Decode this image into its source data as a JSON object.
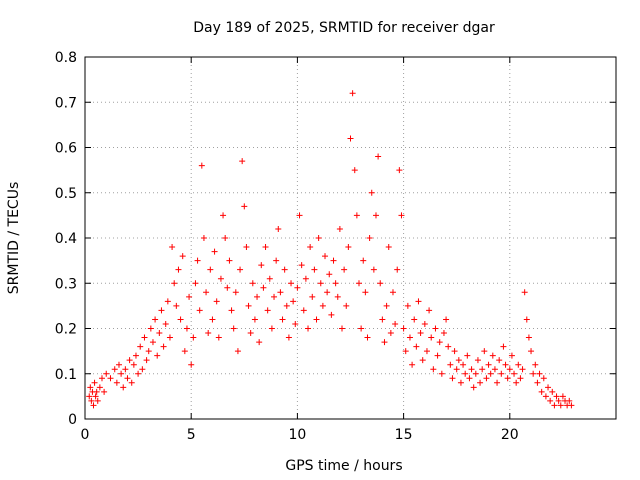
{
  "chart_data": {
    "type": "scatter",
    "title": "Day 189 of 2025, SRMTID for receiver dgar",
    "xlabel": "GPS time / hours",
    "ylabel": "SRMTID / TECUs",
    "xlim": [
      0,
      25
    ],
    "ylim": [
      0,
      0.8
    ],
    "x_ticks": [
      {
        "value": 0,
        "label": "0"
      },
      {
        "value": 5,
        "label": "5"
      },
      {
        "value": 10,
        "label": "10"
      },
      {
        "value": 15,
        "label": "15"
      },
      {
        "value": 20,
        "label": "20"
      }
    ],
    "y_ticks": [
      {
        "value": 0,
        "label": "0"
      },
      {
        "value": 0.1,
        "label": "0.1"
      },
      {
        "value": 0.2,
        "label": "0.2"
      },
      {
        "value": 0.3,
        "label": "0.3"
      },
      {
        "value": 0.4,
        "label": "0.4"
      },
      {
        "value": 0.5,
        "label": "0.5"
      },
      {
        "value": 0.6,
        "label": "0.6"
      },
      {
        "value": 0.7,
        "label": "0.7"
      },
      {
        "value": 0.8,
        "label": "0.8"
      }
    ],
    "grid": true,
    "marker": "+",
    "color": "#ff0000",
    "series": [
      {
        "name": "SRMTID",
        "points": [
          [
            0.2,
            0.05
          ],
          [
            0.25,
            0.07
          ],
          [
            0.3,
            0.04
          ],
          [
            0.35,
            0.06
          ],
          [
            0.4,
            0.03
          ],
          [
            0.45,
            0.08
          ],
          [
            0.5,
            0.05
          ],
          [
            0.55,
            0.06
          ],
          [
            0.6,
            0.04
          ],
          [
            0.7,
            0.07
          ],
          [
            0.8,
            0.09
          ],
          [
            0.9,
            0.06
          ],
          [
            1.0,
            0.1
          ],
          [
            1.2,
            0.09
          ],
          [
            1.4,
            0.11
          ],
          [
            1.5,
            0.08
          ],
          [
            1.6,
            0.12
          ],
          [
            1.7,
            0.1
          ],
          [
            1.8,
            0.07
          ],
          [
            1.9,
            0.11
          ],
          [
            2.0,
            0.09
          ],
          [
            2.1,
            0.13
          ],
          [
            2.2,
            0.08
          ],
          [
            2.3,
            0.12
          ],
          [
            2.4,
            0.14
          ],
          [
            2.5,
            0.1
          ],
          [
            2.6,
            0.16
          ],
          [
            2.7,
            0.11
          ],
          [
            2.8,
            0.18
          ],
          [
            2.9,
            0.13
          ],
          [
            3.0,
            0.15
          ],
          [
            3.1,
            0.2
          ],
          [
            3.2,
            0.17
          ],
          [
            3.3,
            0.22
          ],
          [
            3.4,
            0.14
          ],
          [
            3.5,
            0.19
          ],
          [
            3.6,
            0.24
          ],
          [
            3.7,
            0.16
          ],
          [
            3.8,
            0.21
          ],
          [
            3.9,
            0.26
          ],
          [
            4.0,
            0.18
          ],
          [
            4.1,
            0.38
          ],
          [
            4.2,
            0.3
          ],
          [
            4.3,
            0.25
          ],
          [
            4.4,
            0.33
          ],
          [
            4.5,
            0.22
          ],
          [
            4.6,
            0.36
          ],
          [
            4.7,
            0.15
          ],
          [
            4.8,
            0.2
          ],
          [
            4.9,
            0.27
          ],
          [
            5.0,
            0.12
          ],
          [
            5.1,
            0.18
          ],
          [
            5.2,
            0.3
          ],
          [
            5.3,
            0.35
          ],
          [
            5.4,
            0.24
          ],
          [
            5.5,
            0.56
          ],
          [
            5.6,
            0.4
          ],
          [
            5.7,
            0.28
          ],
          [
            5.8,
            0.19
          ],
          [
            5.9,
            0.33
          ],
          [
            6.0,
            0.22
          ],
          [
            6.1,
            0.37
          ],
          [
            6.2,
            0.26
          ],
          [
            6.3,
            0.18
          ],
          [
            6.4,
            0.31
          ],
          [
            6.5,
            0.45
          ],
          [
            6.6,
            0.4
          ],
          [
            6.7,
            0.29
          ],
          [
            6.8,
            0.35
          ],
          [
            6.9,
            0.24
          ],
          [
            7.0,
            0.2
          ],
          [
            7.1,
            0.28
          ],
          [
            7.2,
            0.15
          ],
          [
            7.3,
            0.33
          ],
          [
            7.4,
            0.57
          ],
          [
            7.5,
            0.47
          ],
          [
            7.6,
            0.38
          ],
          [
            7.7,
            0.25
          ],
          [
            7.8,
            0.19
          ],
          [
            7.9,
            0.3
          ],
          [
            8.0,
            0.22
          ],
          [
            8.1,
            0.27
          ],
          [
            8.2,
            0.17
          ],
          [
            8.3,
            0.34
          ],
          [
            8.4,
            0.29
          ],
          [
            8.5,
            0.38
          ],
          [
            8.6,
            0.24
          ],
          [
            8.7,
            0.31
          ],
          [
            8.8,
            0.2
          ],
          [
            8.9,
            0.27
          ],
          [
            9.0,
            0.35
          ],
          [
            9.1,
            0.42
          ],
          [
            9.2,
            0.28
          ],
          [
            9.3,
            0.22
          ],
          [
            9.4,
            0.33
          ],
          [
            9.5,
            0.25
          ],
          [
            9.6,
            0.18
          ],
          [
            9.7,
            0.3
          ],
          [
            9.8,
            0.26
          ],
          [
            9.9,
            0.21
          ],
          [
            10.0,
            0.29
          ],
          [
            10.1,
            0.45
          ],
          [
            10.2,
            0.34
          ],
          [
            10.3,
            0.24
          ],
          [
            10.4,
            0.31
          ],
          [
            10.5,
            0.2
          ],
          [
            10.6,
            0.38
          ],
          [
            10.7,
            0.27
          ],
          [
            10.8,
            0.33
          ],
          [
            10.9,
            0.22
          ],
          [
            11.0,
            0.4
          ],
          [
            11.1,
            0.3
          ],
          [
            11.2,
            0.25
          ],
          [
            11.3,
            0.36
          ],
          [
            11.4,
            0.28
          ],
          [
            11.5,
            0.32
          ],
          [
            11.6,
            0.23
          ],
          [
            11.7,
            0.35
          ],
          [
            11.8,
            0.3
          ],
          [
            11.9,
            0.27
          ],
          [
            12.0,
            0.42
          ],
          [
            12.1,
            0.2
          ],
          [
            12.2,
            0.33
          ],
          [
            12.3,
            0.25
          ],
          [
            12.4,
            0.38
          ],
          [
            12.5,
            0.62
          ],
          [
            12.6,
            0.72
          ],
          [
            12.7,
            0.55
          ],
          [
            12.8,
            0.45
          ],
          [
            12.9,
            0.3
          ],
          [
            13.0,
            0.2
          ],
          [
            13.1,
            0.35
          ],
          [
            13.2,
            0.28
          ],
          [
            13.3,
            0.18
          ],
          [
            13.4,
            0.4
          ],
          [
            13.5,
            0.5
          ],
          [
            13.6,
            0.33
          ],
          [
            13.7,
            0.45
          ],
          [
            13.8,
            0.58
          ],
          [
            13.9,
            0.3
          ],
          [
            14.0,
            0.22
          ],
          [
            14.1,
            0.17
          ],
          [
            14.2,
            0.25
          ],
          [
            14.3,
            0.38
          ],
          [
            14.4,
            0.19
          ],
          [
            14.5,
            0.28
          ],
          [
            14.6,
            0.21
          ],
          [
            14.7,
            0.33
          ],
          [
            14.8,
            0.55
          ],
          [
            14.9,
            0.45
          ],
          [
            15.0,
            0.2
          ],
          [
            15.1,
            0.15
          ],
          [
            15.2,
            0.25
          ],
          [
            15.3,
            0.18
          ],
          [
            15.4,
            0.12
          ],
          [
            15.5,
            0.22
          ],
          [
            15.6,
            0.16
          ],
          [
            15.7,
            0.26
          ],
          [
            15.8,
            0.19
          ],
          [
            15.9,
            0.13
          ],
          [
            16.0,
            0.21
          ],
          [
            16.1,
            0.15
          ],
          [
            16.2,
            0.24
          ],
          [
            16.3,
            0.18
          ],
          [
            16.4,
            0.11
          ],
          [
            16.5,
            0.2
          ],
          [
            16.6,
            0.14
          ],
          [
            16.7,
            0.17
          ],
          [
            16.8,
            0.1
          ],
          [
            16.9,
            0.19
          ],
          [
            17.0,
            0.22
          ],
          [
            17.1,
            0.16
          ],
          [
            17.2,
            0.12
          ],
          [
            17.3,
            0.09
          ],
          [
            17.4,
            0.15
          ],
          [
            17.5,
            0.11
          ],
          [
            17.6,
            0.13
          ],
          [
            17.7,
            0.08
          ],
          [
            17.8,
            0.12
          ],
          [
            17.9,
            0.1
          ],
          [
            18.0,
            0.14
          ],
          [
            18.1,
            0.09
          ],
          [
            18.2,
            0.11
          ],
          [
            18.3,
            0.07
          ],
          [
            18.4,
            0.1
          ],
          [
            18.5,
            0.13
          ],
          [
            18.6,
            0.08
          ],
          [
            18.7,
            0.11
          ],
          [
            18.8,
            0.15
          ],
          [
            18.9,
            0.09
          ],
          [
            19.0,
            0.12
          ],
          [
            19.1,
            0.1
          ],
          [
            19.2,
            0.14
          ],
          [
            19.3,
            0.11
          ],
          [
            19.4,
            0.08
          ],
          [
            19.5,
            0.13
          ],
          [
            19.6,
            0.1
          ],
          [
            19.7,
            0.16
          ],
          [
            19.8,
            0.12
          ],
          [
            19.9,
            0.09
          ],
          [
            20.0,
            0.11
          ],
          [
            20.1,
            0.14
          ],
          [
            20.2,
            0.1
          ],
          [
            20.3,
            0.08
          ],
          [
            20.4,
            0.12
          ],
          [
            20.5,
            0.09
          ],
          [
            20.6,
            0.11
          ],
          [
            20.7,
            0.28
          ],
          [
            20.8,
            0.22
          ],
          [
            20.9,
            0.18
          ],
          [
            21.0,
            0.15
          ],
          [
            21.1,
            0.1
          ],
          [
            21.2,
            0.12
          ],
          [
            21.3,
            0.08
          ],
          [
            21.4,
            0.1
          ],
          [
            21.5,
            0.06
          ],
          [
            21.6,
            0.09
          ],
          [
            21.7,
            0.05
          ],
          [
            21.8,
            0.07
          ],
          [
            21.9,
            0.04
          ],
          [
            22.0,
            0.06
          ],
          [
            22.1,
            0.03
          ],
          [
            22.2,
            0.05
          ],
          [
            22.3,
            0.04
          ],
          [
            22.4,
            0.03
          ],
          [
            22.5,
            0.05
          ],
          [
            22.6,
            0.04
          ],
          [
            22.7,
            0.03
          ],
          [
            22.8,
            0.04
          ],
          [
            22.9,
            0.03
          ]
        ]
      }
    ]
  }
}
